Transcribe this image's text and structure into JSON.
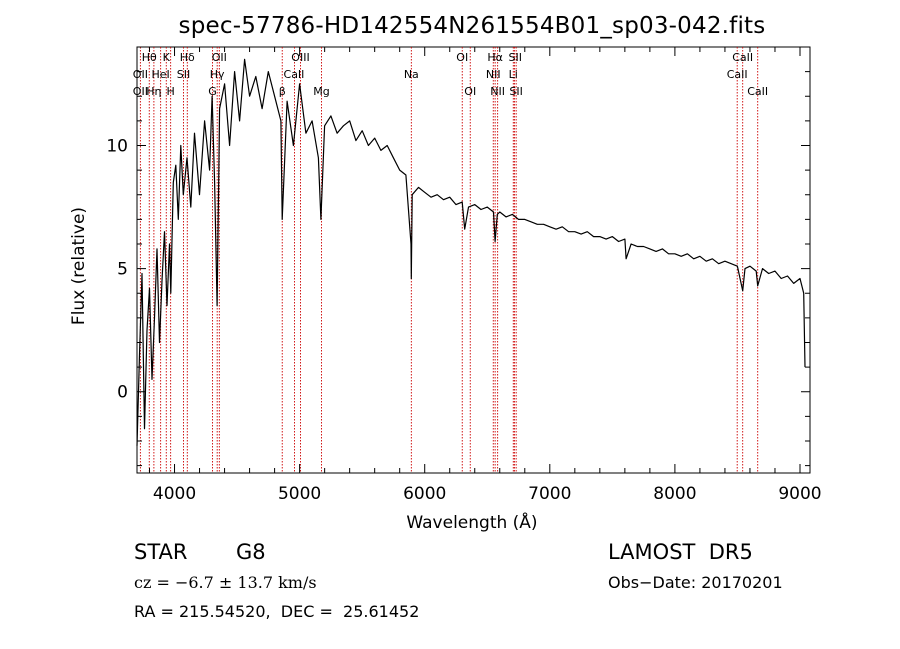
{
  "chart_data": {
    "type": "line",
    "title": "spec-57786-HD142554N261554B01_sp03-042.fits",
    "xlabel": "Wavelength (Å)",
    "ylabel": "Flux (relative)",
    "xlim": [
      3700,
      9080
    ],
    "ylim": [
      -3.3,
      14.0
    ],
    "x_ticks": [
      4000,
      5000,
      6000,
      7000,
      8000,
      9000
    ],
    "y_ticks": [
      0,
      5,
      10
    ],
    "grid": false,
    "series": [
      {
        "x": [
          3700,
          3720,
          3740,
          3760,
          3780,
          3800,
          3820,
          3840,
          3860,
          3880,
          3900,
          3920,
          3940,
          3960,
          3970,
          3990,
          4010,
          4030,
          4050,
          4070,
          4100,
          4130,
          4160,
          4200,
          4240,
          4280,
          4300,
          4320,
          4340,
          4360,
          4400,
          4440,
          4480,
          4520,
          4560,
          4600,
          4650,
          4700,
          4750,
          4800,
          4850,
          4861,
          4900,
          4950,
          5000,
          5050,
          5100,
          5150,
          5170,
          5200,
          5250,
          5300,
          5350,
          5400,
          5450,
          5500,
          5550,
          5600,
          5650,
          5700,
          5750,
          5800,
          5850,
          5890,
          5893,
          5900,
          5950,
          6000,
          6050,
          6100,
          6150,
          6200,
          6250,
          6300,
          6320,
          6350,
          6400,
          6450,
          6500,
          6550,
          6563,
          6580,
          6600,
          6650,
          6700,
          6750,
          6800,
          6850,
          6900,
          6950,
          7000,
          7050,
          7100,
          7150,
          7200,
          7250,
          7300,
          7350,
          7400,
          7450,
          7500,
          7550,
          7600,
          7610,
          7650,
          7700,
          7750,
          7800,
          7850,
          7900,
          7950,
          8000,
          8050,
          8100,
          8150,
          8200,
          8250,
          8300,
          8350,
          8400,
          8450,
          8500,
          8542,
          8560,
          8600,
          8650,
          8662,
          8700,
          8750,
          8800,
          8850,
          8900,
          8950,
          9000,
          9030,
          9040
        ],
        "y": [
          -2.2,
          1.5,
          4.8,
          -1.5,
          2.5,
          4.2,
          0.5,
          3.0,
          5.8,
          2.0,
          4.5,
          6.5,
          3.5,
          6.0,
          4.0,
          8.5,
          9.2,
          7.0,
          10.0,
          8.0,
          9.5,
          7.5,
          10.5,
          8.0,
          11.0,
          9.0,
          12.0,
          8.5,
          3.5,
          11.5,
          12.5,
          10.0,
          13.0,
          11.0,
          13.5,
          12.0,
          12.8,
          11.5,
          13.0,
          12.0,
          11.0,
          7.0,
          11.8,
          10.0,
          12.5,
          10.5,
          11.0,
          9.5,
          7.0,
          10.8,
          11.2,
          10.5,
          10.8,
          11.0,
          10.2,
          10.6,
          10.0,
          10.3,
          9.8,
          10.0,
          9.5,
          9.0,
          8.8,
          6.0,
          4.6,
          8.0,
          8.3,
          8.1,
          7.9,
          8.0,
          7.8,
          7.9,
          7.6,
          7.7,
          6.6,
          7.5,
          7.6,
          7.4,
          7.5,
          7.3,
          6.1,
          7.2,
          7.3,
          7.1,
          7.2,
          7.0,
          7.0,
          6.9,
          6.8,
          6.8,
          6.7,
          6.6,
          6.7,
          6.5,
          6.5,
          6.4,
          6.5,
          6.3,
          6.3,
          6.2,
          6.3,
          6.1,
          6.2,
          5.4,
          6.0,
          5.9,
          5.9,
          5.8,
          5.7,
          5.8,
          5.6,
          5.6,
          5.5,
          5.6,
          5.4,
          5.5,
          5.3,
          5.4,
          5.2,
          5.3,
          5.2,
          5.1,
          4.1,
          5.0,
          5.1,
          4.9,
          4.3,
          5.0,
          4.8,
          4.9,
          4.6,
          4.7,
          4.4,
          4.6,
          4.0,
          1.0
        ]
      }
    ],
    "line_labels": [
      {
        "text": "Hθ",
        "x": 3798,
        "row": 0
      },
      {
        "text": "K",
        "x": 3934,
        "row": 0
      },
      {
        "text": "Hδ",
        "x": 4102,
        "row": 0
      },
      {
        "text": "OII",
        "x": 4358,
        "row": 0
      },
      {
        "text": "OIII",
        "x": 5007,
        "row": 0
      },
      {
        "text": "OI",
        "x": 6300,
        "row": 0
      },
      {
        "text": "Hα",
        "x": 6563,
        "row": 0
      },
      {
        "text": "SII",
        "x": 6724,
        "row": 0
      },
      {
        "text": "CaII",
        "x": 8542,
        "row": 0
      },
      {
        "text": "OII",
        "x": 3727,
        "row": 1
      },
      {
        "text": "HeI",
        "x": 3889,
        "row": 1
      },
      {
        "text": "SII",
        "x": 4072,
        "row": 1
      },
      {
        "text": "Hγ",
        "x": 4341,
        "row": 1
      },
      {
        "text": "CaII",
        "x": 4955,
        "row": 1
      },
      {
        "text": "Na",
        "x": 5893,
        "row": 1
      },
      {
        "text": "NII",
        "x": 6548,
        "row": 1
      },
      {
        "text": "Li",
        "x": 6708,
        "row": 1
      },
      {
        "text": "CaII",
        "x": 8498,
        "row": 1
      },
      {
        "text": "OII",
        "x": 3727,
        "row": 2
      },
      {
        "text": "Hη",
        "x": 3835,
        "row": 2
      },
      {
        "text": "H",
        "x": 3969,
        "row": 2
      },
      {
        "text": "G",
        "x": 4304,
        "row": 2
      },
      {
        "text": "β",
        "x": 4861,
        "row": 2
      },
      {
        "text": "Mg",
        "x": 5175,
        "row": 2
      },
      {
        "text": "OI",
        "x": 6364,
        "row": 2
      },
      {
        "text": "NII",
        "x": 6583,
        "row": 2
      },
      {
        "text": "SII",
        "x": 6731,
        "row": 2
      },
      {
        "text": "CaII",
        "x": 8662,
        "row": 2
      }
    ],
    "line_positions": [
      3727,
      3798,
      3835,
      3889,
      3934,
      3969,
      4072,
      4102,
      4304,
      4341,
      4358,
      4861,
      4959,
      5007,
      5175,
      5893,
      6300,
      6364,
      6548,
      6563,
      6583,
      6708,
      6717,
      6731,
      8498,
      8542,
      8662
    ],
    "line_color": "#cc0000",
    "curve_color": "#000000",
    "axis_color": "#000000"
  },
  "footer": {
    "object_type": "STAR",
    "subclass": "G8",
    "survey": "LAMOST  DR5",
    "cz": "cz = −6.7 ± 13.7 km/s",
    "obs_date": "Obs−Date: 20170201",
    "coords": "RA = 215.54520,  DEC =  25.61452"
  }
}
